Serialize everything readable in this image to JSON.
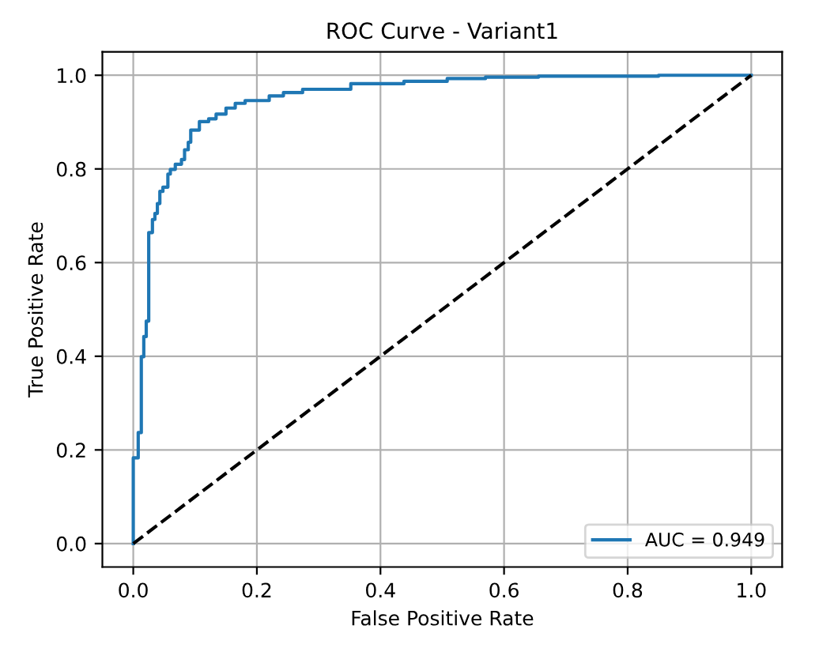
{
  "chart_data": {
    "type": "line",
    "title": "ROC Curve - Variant1",
    "xlabel": "False Positive Rate",
    "ylabel": "True Positive Rate",
    "series": [
      {
        "name": "AUC = 0.949",
        "color": "#1f77b4",
        "line_style": "solid",
        "x": [
          0,
          0,
          0.008,
          0.008,
          0.013,
          0.013,
          0.017,
          0.017,
          0.021,
          0.021,
          0.025,
          0.025,
          0.031,
          0.031,
          0.035,
          0.035,
          0.039,
          0.039,
          0.043,
          0.043,
          0.048,
          0.048,
          0.056,
          0.056,
          0.06,
          0.06,
          0.068,
          0.068,
          0.078,
          0.078,
          0.083,
          0.083,
          0.089,
          0.089,
          0.093,
          0.093,
          0.107,
          0.107,
          0.122,
          0.122,
          0.134,
          0.134,
          0.15,
          0.15,
          0.165,
          0.165,
          0.181,
          0.181,
          0.22,
          0.22,
          0.243,
          0.243,
          0.274,
          0.274,
          0.352,
          0.352,
          0.438,
          0.438,
          0.508,
          0.508,
          0.57,
          0.57,
          0.656,
          0.656,
          0.85,
          0.85,
          1.0
        ],
        "values": [
          0,
          0.183,
          0.183,
          0.237,
          0.237,
          0.399,
          0.399,
          0.442,
          0.442,
          0.475,
          0.475,
          0.664,
          0.664,
          0.692,
          0.692,
          0.705,
          0.705,
          0.726,
          0.726,
          0.752,
          0.752,
          0.761,
          0.761,
          0.789,
          0.789,
          0.799,
          0.799,
          0.81,
          0.81,
          0.82,
          0.82,
          0.841,
          0.841,
          0.857,
          0.857,
          0.883,
          0.883,
          0.901,
          0.901,
          0.907,
          0.907,
          0.917,
          0.917,
          0.93,
          0.93,
          0.94,
          0.94,
          0.946,
          0.946,
          0.956,
          0.956,
          0.963,
          0.963,
          0.97,
          0.97,
          0.982,
          0.982,
          0.987,
          0.987,
          0.993,
          0.993,
          0.996,
          0.996,
          0.998,
          0.998,
          1.0,
          1.0
        ]
      },
      {
        "color": "#000000",
        "line_style": "dashed",
        "x": [
          0,
          1
        ],
        "values": [
          0,
          1
        ]
      }
    ],
    "xlim": [
      -0.05,
      1.05
    ],
    "ylim": [
      -0.05,
      1.05
    ],
    "xticks": [
      {
        "value": 0,
        "label": "0.0"
      },
      {
        "value": 0.2,
        "label": "0.2"
      },
      {
        "value": 0.4,
        "label": "0.4"
      },
      {
        "value": 0.6,
        "label": "0.6"
      },
      {
        "value": 0.8,
        "label": "0.8"
      },
      {
        "value": 1,
        "label": "1.0"
      }
    ],
    "yticks": [
      {
        "value": 0,
        "label": "0.0"
      },
      {
        "value": 0.2,
        "label": "0.2"
      },
      {
        "value": 0.4,
        "label": "0.4"
      },
      {
        "value": 0.6,
        "label": "0.6"
      },
      {
        "value": 0.8,
        "label": "0.8"
      },
      {
        "value": 1,
        "label": "1.0"
      }
    ],
    "grid": true,
    "legend": "lower right",
    "marker": "none"
  }
}
